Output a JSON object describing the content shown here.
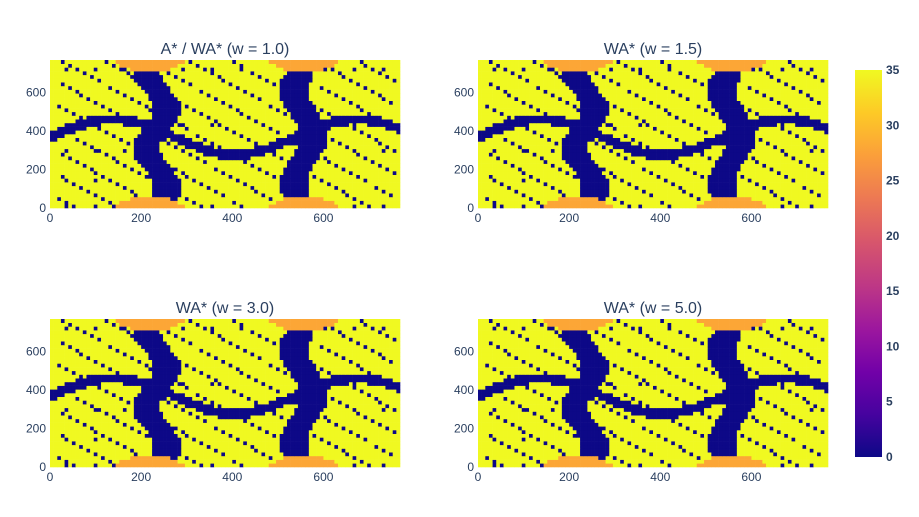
{
  "chart_data": [
    {
      "type": "heatmap",
      "title": "A* / WA* (w = 1.0)",
      "xlim": [
        0,
        768
      ],
      "ylim": [
        0,
        768
      ],
      "xticks": [
        0,
        200,
        400,
        600
      ],
      "yticks": [
        0,
        200,
        400,
        600
      ],
      "xtick_labels": [
        "0",
        "200",
        "400",
        "600"
      ],
      "ytick_labels": [
        "0",
        "200",
        "400",
        "600"
      ]
    },
    {
      "type": "heatmap",
      "title": "WA* (w = 1.5)",
      "xlim": [
        0,
        768
      ],
      "ylim": [
        0,
        768
      ],
      "xticks": [
        0,
        200,
        400,
        600
      ],
      "yticks": [
        0,
        200,
        400,
        600
      ],
      "xtick_labels": [
        "0",
        "200",
        "400",
        "600"
      ],
      "ytick_labels": [
        "0",
        "200",
        "400",
        "600"
      ]
    },
    {
      "type": "heatmap",
      "title": "WA* (w = 3.0)",
      "xlim": [
        0,
        768
      ],
      "ylim": [
        0,
        768
      ],
      "xticks": [
        0,
        200,
        400,
        600
      ],
      "yticks": [
        0,
        200,
        400,
        600
      ],
      "xtick_labels": [
        "0",
        "200",
        "400",
        "600"
      ],
      "ytick_labels": [
        "0",
        "200",
        "400",
        "600"
      ]
    },
    {
      "type": "heatmap",
      "title": "WA* (w = 5.0)",
      "xlim": [
        0,
        768
      ],
      "ylim": [
        0,
        768
      ],
      "xticks": [
        0,
        200,
        400,
        600
      ],
      "yticks": [
        0,
        200,
        400,
        600
      ],
      "xtick_labels": [
        "0",
        "200",
        "400",
        "600"
      ],
      "ytick_labels": [
        "0",
        "200",
        "400",
        "600"
      ]
    }
  ],
  "colorbar": {
    "range": [
      0,
      35
    ],
    "ticks": [
      0,
      5,
      10,
      15,
      20,
      25,
      30,
      35
    ],
    "tick_labels": [
      "0",
      "5",
      "10",
      "15",
      "20",
      "25",
      "30",
      "35"
    ],
    "colorscale": "plasma",
    "colors": [
      "#0d0887",
      "#46039f",
      "#7201a8",
      "#9c179e",
      "#bd3786",
      "#d8576b",
      "#ed7953",
      "#fb9f3a",
      "#fdca26",
      "#f0f921"
    ]
  },
  "palette": {
    "low": "#0d0887",
    "mid": "#fca636",
    "high": "#f0f921"
  }
}
